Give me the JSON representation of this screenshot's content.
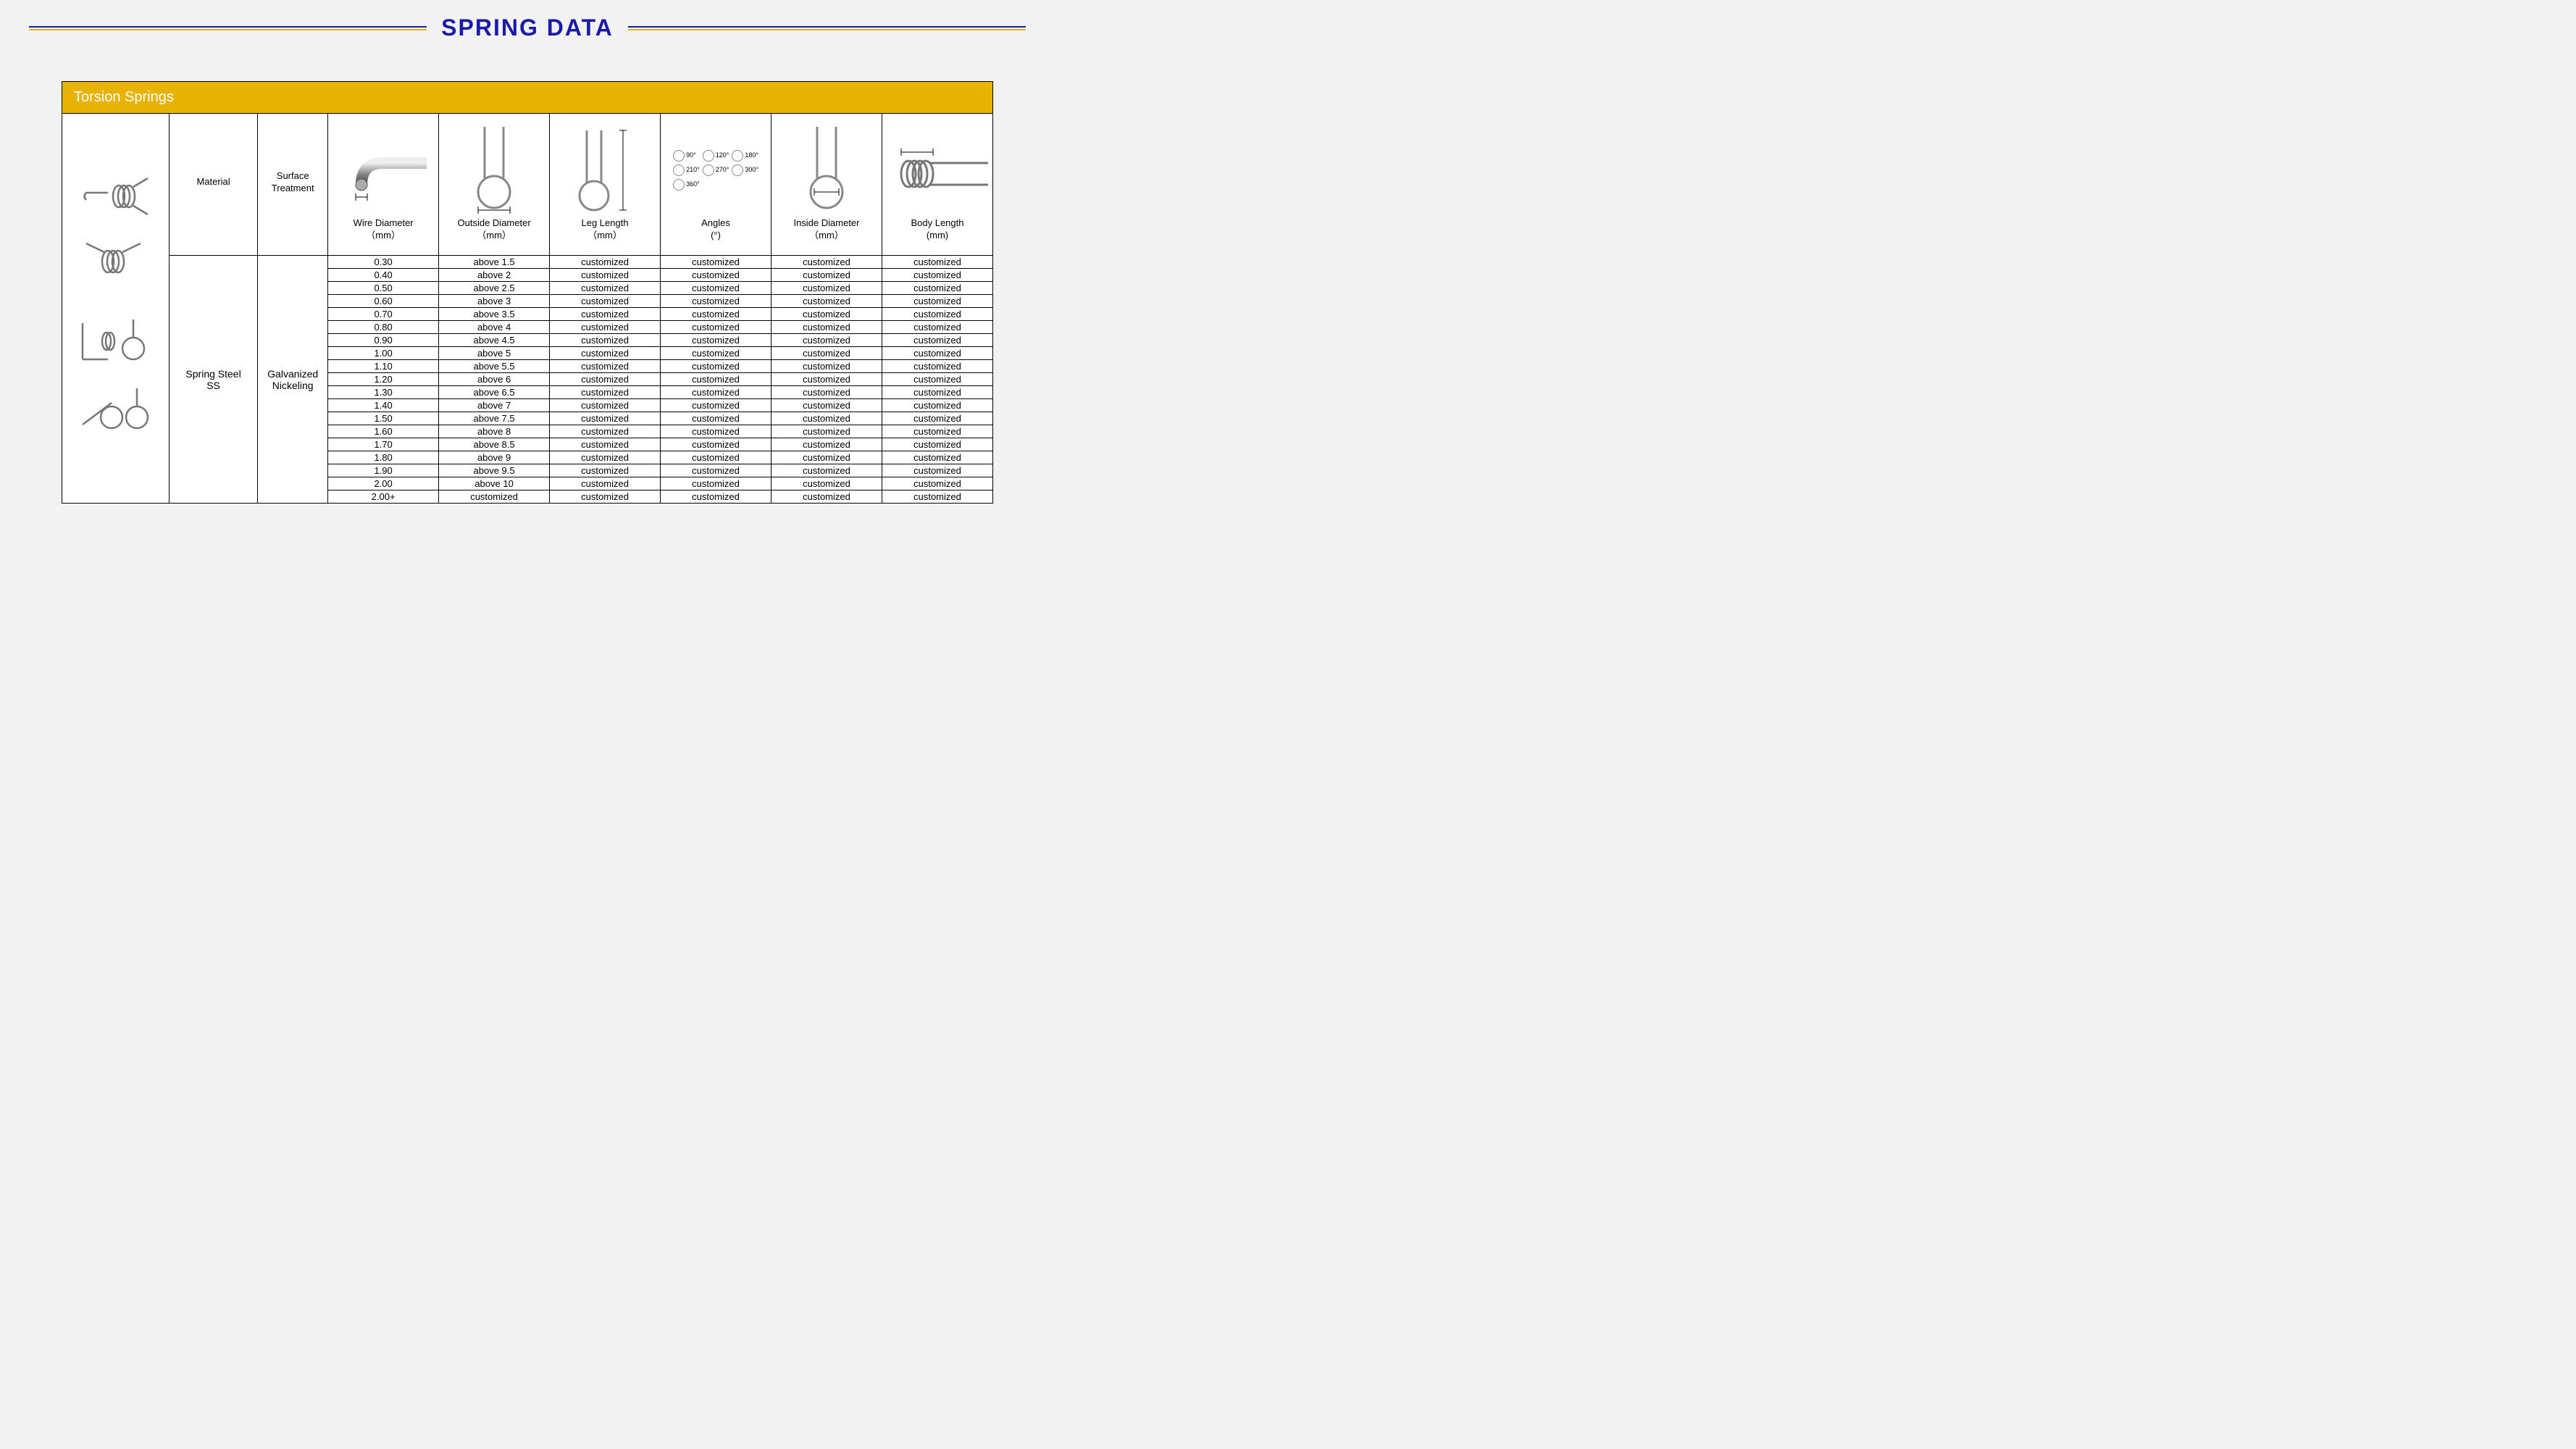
{
  "title": "SPRING  DATA",
  "section_title": "Torsion Springs",
  "colors": {
    "title": "#1a1aa8",
    "accent_line_top": "#1a1aa8",
    "accent_line_bottom": "#e8b200",
    "header_bar_bg": "#e8b200",
    "header_bar_fg": "#ffffff",
    "table_border": "#000000",
    "page_bg": "#f2f2f2",
    "cell_bg": "#ffffff"
  },
  "columns": [
    {
      "key": "product_img",
      "label": ""
    },
    {
      "key": "material",
      "label": "Material"
    },
    {
      "key": "surface",
      "label": "Surface\nTreatment"
    },
    {
      "key": "wire_dia",
      "label": "Wire Diameter\n（mm）"
    },
    {
      "key": "outside_dia",
      "label": "Outside Diameter\n（mm）"
    },
    {
      "key": "leg_len",
      "label": "Leg Length\n（mm）"
    },
    {
      "key": "angles",
      "label": "Angles\n(°)"
    },
    {
      "key": "inside_dia",
      "label": "Inside Diameter\n（mm）"
    },
    {
      "key": "body_len",
      "label": "Body Length\n(mm)"
    }
  ],
  "material_cell": "Spring Steel\nSS",
  "surface_cell": "Galvanized\nNickeling",
  "angle_labels": [
    "90°",
    "120°",
    "180°",
    "210°",
    "270°",
    "300°",
    "360°"
  ],
  "rows": [
    {
      "wire": "0.30",
      "od": "above 1.5",
      "leg": "customized",
      "angle": "customized",
      "id": "customized",
      "body": "customized"
    },
    {
      "wire": "0.40",
      "od": "above 2",
      "leg": "customized",
      "angle": "customized",
      "id": "customized",
      "body": "customized"
    },
    {
      "wire": "0.50",
      "od": "above 2.5",
      "leg": "customized",
      "angle": "customized",
      "id": "customized",
      "body": "customized"
    },
    {
      "wire": "0.60",
      "od": "above 3",
      "leg": "customized",
      "angle": "customized",
      "id": "customized",
      "body": "customized"
    },
    {
      "wire": "0.70",
      "od": "above 3.5",
      "leg": "customized",
      "angle": "customized",
      "id": "customized",
      "body": "customized"
    },
    {
      "wire": "0.80",
      "od": "above 4",
      "leg": "customized",
      "angle": "customized",
      "id": "customized",
      "body": "customized"
    },
    {
      "wire": "0.90",
      "od": "above 4.5",
      "leg": "customized",
      "angle": "customized",
      "id": "customized",
      "body": "customized"
    },
    {
      "wire": "1.00",
      "od": "above 5",
      "leg": "customized",
      "angle": "customized",
      "id": "customized",
      "body": "customized"
    },
    {
      "wire": "1.10",
      "od": "above 5.5",
      "leg": "customized",
      "angle": "customized",
      "id": "customized",
      "body": "customized"
    },
    {
      "wire": "1.20",
      "od": "above 6",
      "leg": "customized",
      "angle": "customized",
      "id": "customized",
      "body": "customized"
    },
    {
      "wire": "1.30",
      "od": "above 6.5",
      "leg": "customized",
      "angle": "customized",
      "id": "customized",
      "body": "customized"
    },
    {
      "wire": "1.40",
      "od": "above 7",
      "leg": "customized",
      "angle": "customized",
      "id": "customized",
      "body": "customized"
    },
    {
      "wire": "1.50",
      "od": "above 7.5",
      "leg": "customized",
      "angle": "customized",
      "id": "customized",
      "body": "customized"
    },
    {
      "wire": "1.60",
      "od": "above 8",
      "leg": "customized",
      "angle": "customized",
      "id": "customized",
      "body": "customized"
    },
    {
      "wire": "1.70",
      "od": "above 8.5",
      "leg": "customized",
      "angle": "customized",
      "id": "customized",
      "body": "customized"
    },
    {
      "wire": "1.80",
      "od": "above 9",
      "leg": "customized",
      "angle": "customized",
      "id": "customized",
      "body": "customized"
    },
    {
      "wire": "1.90",
      "od": "above 9.5",
      "leg": "customized",
      "angle": "customized",
      "id": "customized",
      "body": "customized"
    },
    {
      "wire": "2.00",
      "od": "above 10",
      "leg": "customized",
      "angle": "customized",
      "id": "customized",
      "body": "customized"
    },
    {
      "wire": "2.00+",
      "od": "customized",
      "leg": "customized",
      "angle": "customized",
      "id": "customized",
      "body": "customized"
    }
  ]
}
